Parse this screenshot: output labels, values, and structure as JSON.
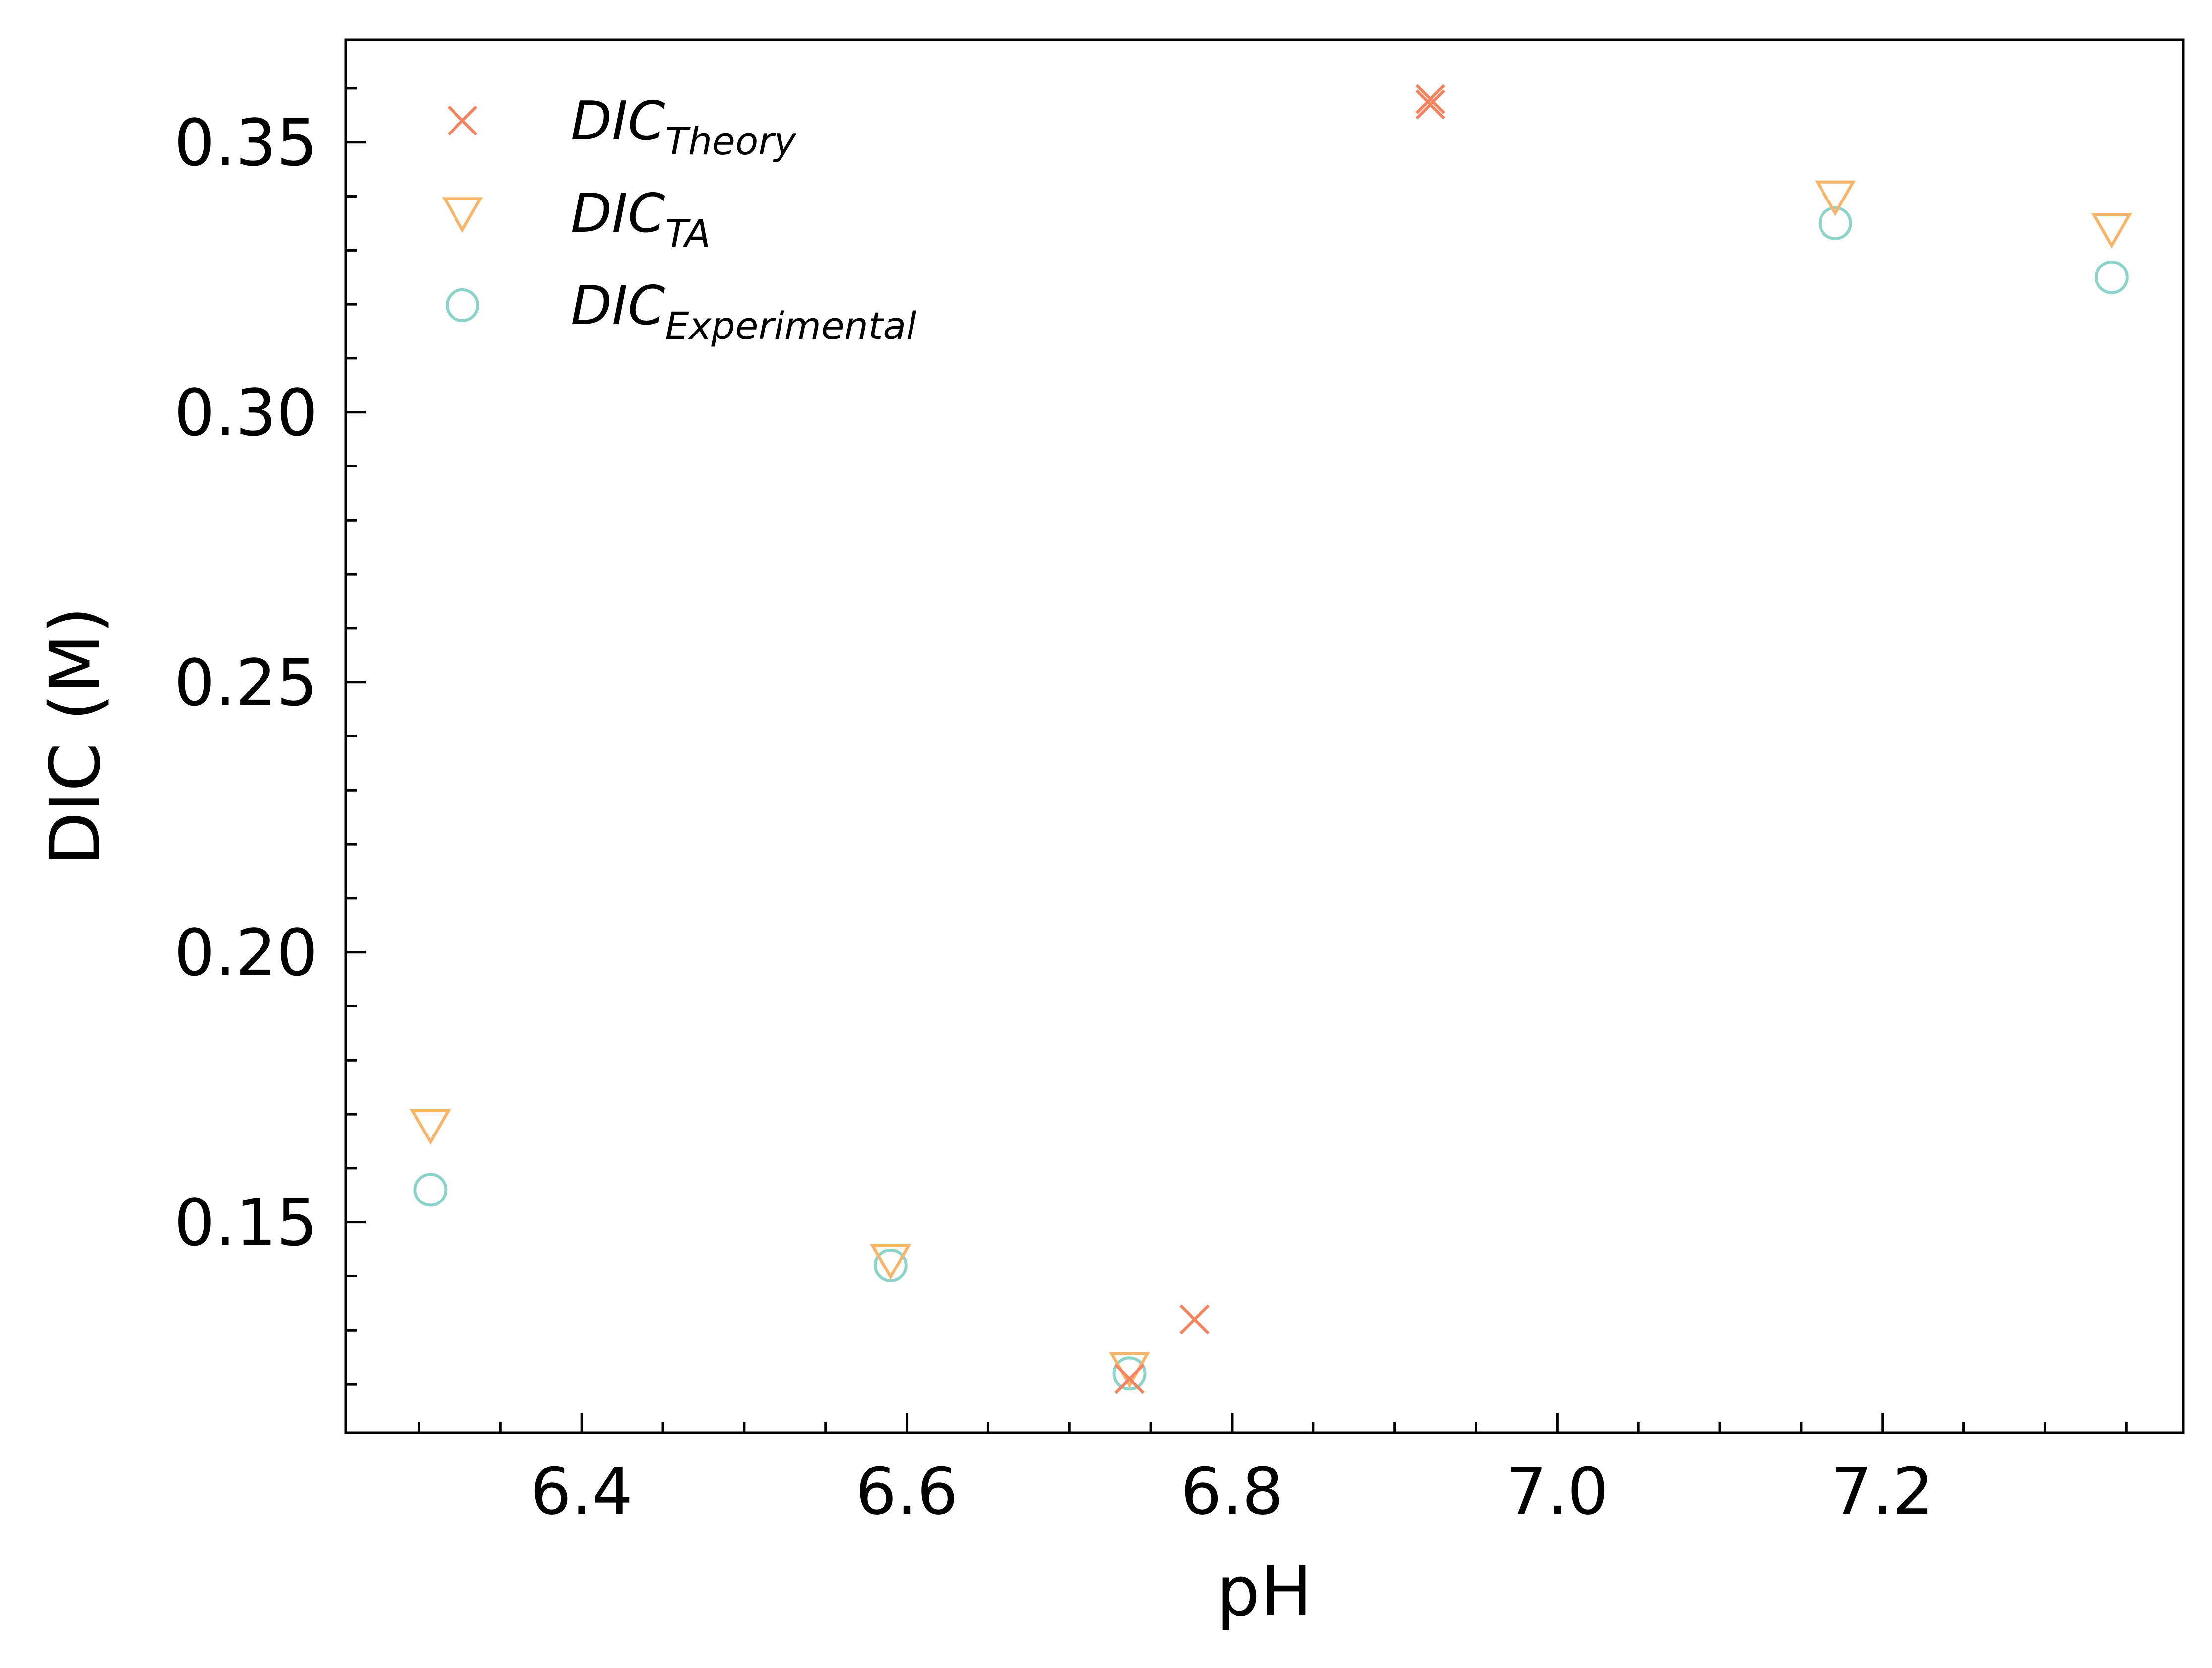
{
  "chart_data": {
    "type": "scatter",
    "title": "",
    "xlabel": "pH",
    "ylabel": "DIC (M)",
    "xlim": [
      6.255,
      7.385
    ],
    "ylim": [
      0.111,
      0.369
    ],
    "x_ticks": [
      "6.4",
      "6.6",
      "6.8",
      "7.0",
      "7.2"
    ],
    "y_ticks": [
      "0.15",
      "0.20",
      "0.25",
      "0.30",
      "0.35"
    ],
    "grid": false,
    "legend_position": "top-left",
    "series": [
      {
        "name_base": "DIC",
        "name_sub": "Theory",
        "marker": "x",
        "color": "#f4845f",
        "points": [
          {
            "x": 6.737,
            "y": 0.121
          },
          {
            "x": 6.777,
            "y": 0.132
          },
          {
            "x": 6.922,
            "y": 0.357
          },
          {
            "x": 6.922,
            "y": 0.358
          }
        ]
      },
      {
        "name_base": "DIC",
        "name_sub": "TA",
        "marker": "triangle-down",
        "color": "#f7b56a",
        "points": [
          {
            "x": 6.307,
            "y": 0.168
          },
          {
            "x": 6.59,
            "y": 0.143
          },
          {
            "x": 6.737,
            "y": 0.123
          },
          {
            "x": 7.171,
            "y": 0.34
          },
          {
            "x": 7.341,
            "y": 0.334
          }
        ]
      },
      {
        "name_base": "DIC",
        "name_sub": "Experimental",
        "marker": "circle",
        "color": "#8dd3c7",
        "points": [
          {
            "x": 6.307,
            "y": 0.156
          },
          {
            "x": 6.59,
            "y": 0.142
          },
          {
            "x": 6.737,
            "y": 0.122
          },
          {
            "x": 7.171,
            "y": 0.335
          },
          {
            "x": 7.341,
            "y": 0.325
          }
        ]
      }
    ]
  }
}
